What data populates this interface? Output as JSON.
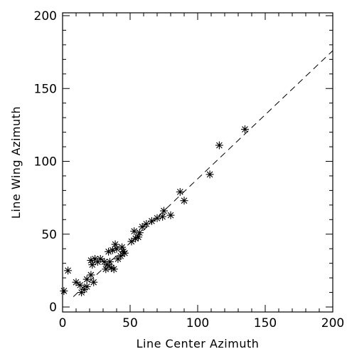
{
  "chart_data": {
    "type": "scatter",
    "xlabel": "Line Center Azimuth",
    "ylabel": "Line Wing Azimuth",
    "xlim": [
      0,
      200
    ],
    "ylim": [
      0,
      200
    ],
    "x_ticks": [
      0,
      50,
      100,
      150,
      200
    ],
    "y_ticks": [
      0,
      50,
      100,
      150,
      200
    ],
    "grid": false,
    "marker": "asterisk",
    "reference_line": {
      "style": "dashed",
      "slope": 0.88,
      "intercept": 0
    },
    "points": [
      {
        "x": 1,
        "y": 11
      },
      {
        "x": 4,
        "y": 25
      },
      {
        "x": 10,
        "y": 17
      },
      {
        "x": 13,
        "y": 15
      },
      {
        "x": 14,
        "y": 10
      },
      {
        "x": 16,
        "y": 12
      },
      {
        "x": 18,
        "y": 14
      },
      {
        "x": 18,
        "y": 19
      },
      {
        "x": 21,
        "y": 22
      },
      {
        "x": 21,
        "y": 32
      },
      {
        "x": 22,
        "y": 29
      },
      {
        "x": 23,
        "y": 17
      },
      {
        "x": 24,
        "y": 33
      },
      {
        "x": 26,
        "y": 31
      },
      {
        "x": 28,
        "y": 33
      },
      {
        "x": 31,
        "y": 31
      },
      {
        "x": 32,
        "y": 26
      },
      {
        "x": 33,
        "y": 29
      },
      {
        "x": 34,
        "y": 38
      },
      {
        "x": 35,
        "y": 31
      },
      {
        "x": 36,
        "y": 27
      },
      {
        "x": 37,
        "y": 39
      },
      {
        "x": 38,
        "y": 26
      },
      {
        "x": 39,
        "y": 43
      },
      {
        "x": 40,
        "y": 40
      },
      {
        "x": 41,
        "y": 33
      },
      {
        "x": 43,
        "y": 35
      },
      {
        "x": 44,
        "y": 41
      },
      {
        "x": 45,
        "y": 38
      },
      {
        "x": 46,
        "y": 37
      },
      {
        "x": 51,
        "y": 45
      },
      {
        "x": 53,
        "y": 52
      },
      {
        "x": 54,
        "y": 47
      },
      {
        "x": 56,
        "y": 48
      },
      {
        "x": 57,
        "y": 51
      },
      {
        "x": 59,
        "y": 55
      },
      {
        "x": 62,
        "y": 57
      },
      {
        "x": 66,
        "y": 59
      },
      {
        "x": 70,
        "y": 61
      },
      {
        "x": 74,
        "y": 62
      },
      {
        "x": 75,
        "y": 66
      },
      {
        "x": 80,
        "y": 63
      },
      {
        "x": 87,
        "y": 79
      },
      {
        "x": 90,
        "y": 73
      },
      {
        "x": 109,
        "y": 91
      },
      {
        "x": 116,
        "y": 111
      },
      {
        "x": 135,
        "y": 122
      }
    ]
  }
}
